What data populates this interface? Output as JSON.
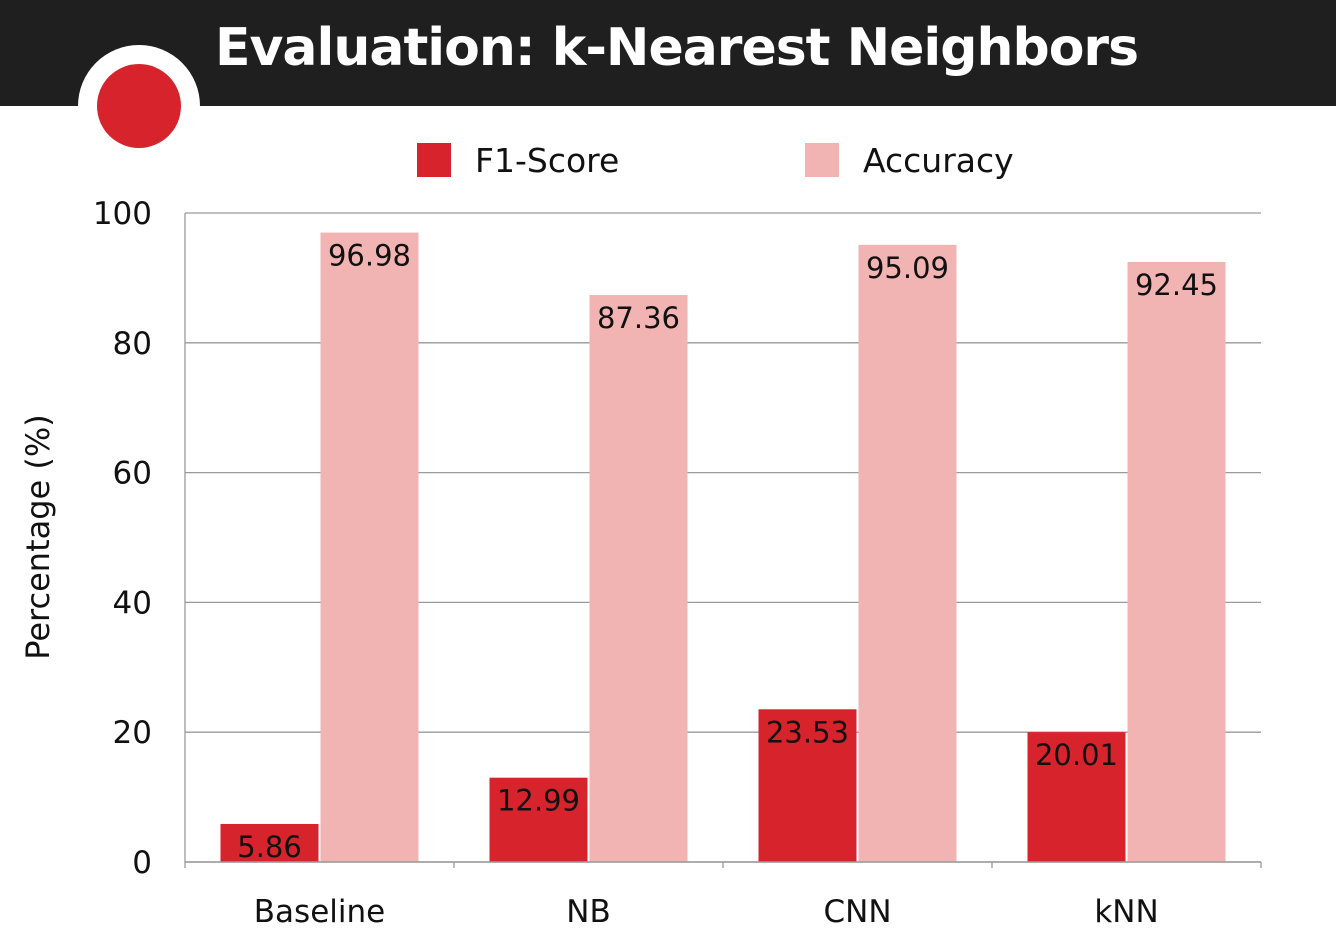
{
  "title": "Evaluation: k-Nearest Neighbors",
  "colors": {
    "f1": "#d7232c",
    "accuracy": "#f2b3b3",
    "title_bar": "#1f1f1f",
    "grid": "#9a9a9a"
  },
  "chart_data": {
    "type": "bar",
    "categories": [
      "Baseline",
      "NB",
      "CNN",
      "kNN"
    ],
    "series": [
      {
        "name": "F1-Score",
        "values": [
          5.86,
          12.99,
          23.53,
          20.01
        ]
      },
      {
        "name": "Accuracy",
        "values": [
          96.98,
          87.36,
          95.09,
          92.45
        ]
      }
    ],
    "data_labels": [
      [
        "5.86",
        "12.99",
        "23.53",
        "20.01"
      ],
      [
        "96.98",
        "87.36",
        "95.09",
        "92.45"
      ]
    ],
    "xlabel": "",
    "ylabel": "Percentage (%)",
    "ylim": [
      0,
      100
    ],
    "yticks": [
      0,
      20,
      40,
      60,
      80,
      100
    ],
    "grid": true,
    "legend_position": "top-center"
  }
}
